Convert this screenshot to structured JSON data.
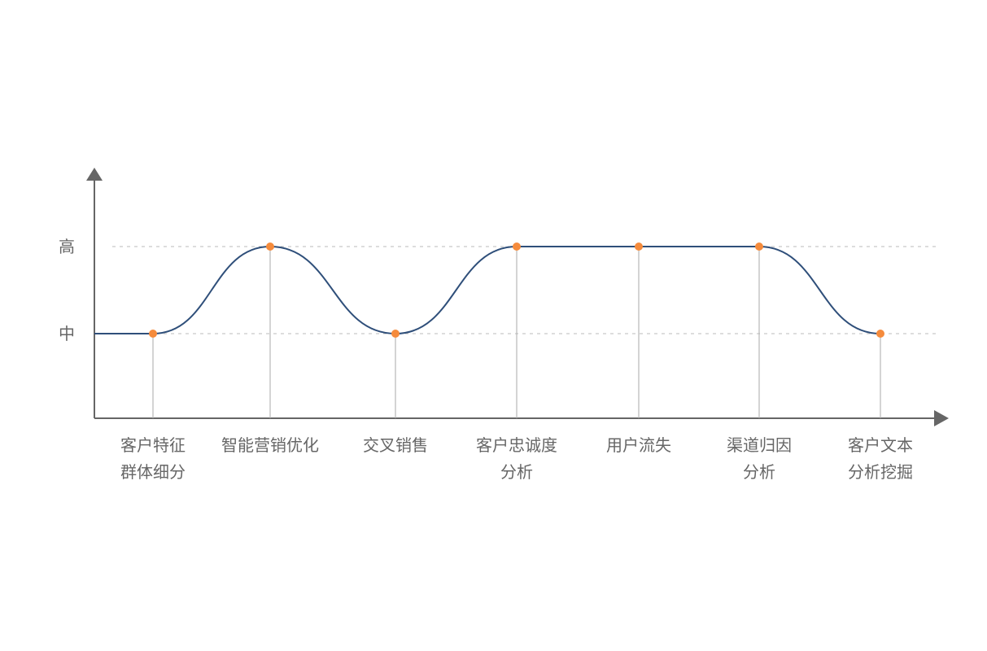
{
  "chart_data": {
    "type": "line",
    "title": "",
    "xlabel": "",
    "ylabel": "",
    "categories": [
      "客户特征\n群体细分",
      "智能营销优化",
      "交叉销售",
      "客户忠诚度\n分析",
      "用户流失",
      "渠道归因\n分析",
      "客户文本\n分析挖掘"
    ],
    "y_ticks": [
      "中",
      "高"
    ],
    "series": [
      {
        "values": [
          "中",
          "高",
          "中",
          "高",
          "高",
          "高",
          "中"
        ]
      }
    ],
    "grid": "dashed horizontal at 中 and 高",
    "legend": "none",
    "colors": {
      "line": "#2f4f7a",
      "point": "#f58b3c",
      "axis": "#666666",
      "drop_line": "#aaaaaa",
      "grid": "#bbbbbb",
      "text": "#666666"
    }
  }
}
